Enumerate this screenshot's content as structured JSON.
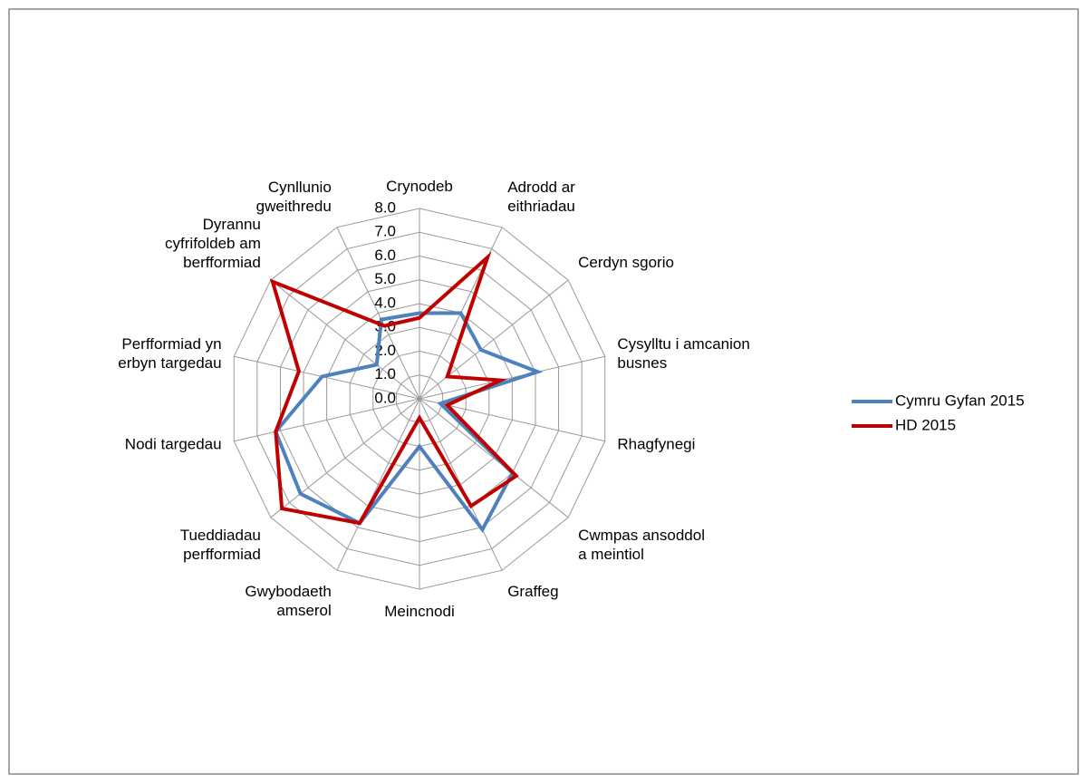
{
  "chart_data": {
    "type": "radar",
    "categories": [
      "Crynodeb",
      "Adrodd ar\neithriadau",
      "Cerdyn sgorio",
      "Cysylltu i amcanion\nbusnes",
      "Rhagfynegi",
      "Cwmpas ansoddol\na meintiol",
      "Graffeg",
      "Meincnodi",
      "Gwybodaeth\namserol",
      "Tueddiadau\nperfformiad",
      "Nodi targedau",
      "Perfformiad yn\nerbyn targedau",
      "Dyrannu\ncyfrifoldeb am\nberfformiad",
      "Cynllunio\ngweithredu"
    ],
    "series": [
      {
        "name": "Cymru Gyfan 2015",
        "color": "#4f81bd",
        "values": [
          3.6,
          4.0,
          3.3,
          5.1,
          0.9,
          5.0,
          6.1,
          2.0,
          5.8,
          6.4,
          6.2,
          4.2,
          2.3,
          3.7
        ]
      },
      {
        "name": "HD 2015",
        "color": "#c00000",
        "values": [
          3.4,
          6.6,
          1.5,
          3.5,
          1.2,
          5.2,
          5.0,
          0.8,
          5.8,
          7.4,
          6.2,
          5.2,
          7.9,
          3.4
        ]
      }
    ],
    "ylim": [
      0,
      8
    ],
    "yticks": [
      {
        "value": 0,
        "label": "0.0"
      },
      {
        "value": 1,
        "label": "1.0"
      },
      {
        "value": 2,
        "label": "2.0"
      },
      {
        "value": 3,
        "label": "3.0"
      },
      {
        "value": 4,
        "label": "4.0"
      },
      {
        "value": 5,
        "label": "5.0"
      },
      {
        "value": 6,
        "label": "6.0"
      },
      {
        "value": 7,
        "label": "7.0"
      },
      {
        "value": 8,
        "label": "8.0"
      }
    ],
    "grid": true,
    "legend": "right"
  }
}
